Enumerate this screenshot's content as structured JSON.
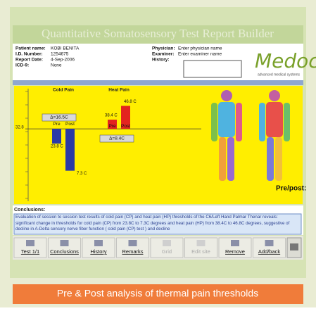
{
  "header": {
    "title": "Quantitative Somatosensory Test Report Builder"
  },
  "patient": [
    {
      "label": "Patient name:",
      "value": "KOBI BENITA"
    },
    {
      "label": "I.D. Number:",
      "value": "1254675"
    },
    {
      "label": "Report Date:",
      "value": "4-Sep-2006"
    },
    {
      "label": "ICD-9:",
      "value": "None"
    }
  ],
  "staff": [
    {
      "label": "Physician:",
      "value": "Enter physician name"
    },
    {
      "label": "Examiner:",
      "value": "Enter examiner name"
    },
    {
      "label": "History:"
    }
  ],
  "logo": {
    "name": "Medoc",
    "tagline": "advanced medical systems"
  },
  "chart": {
    "type": "bar",
    "baseline": 32.8,
    "ylim": [
      -13,
      59
    ],
    "groups": [
      {
        "name": "Cold Pain",
        "categories": [
          "Pre",
          "Post"
        ],
        "values": [
          23.8,
          7.3
        ],
        "value_labels": [
          "23.8 C",
          "7.3 C"
        ],
        "delta": "Δ=16.5C",
        "color": "#2b3aa6"
      },
      {
        "name": "Heat Pain",
        "categories": [
          "Pre",
          "Post"
        ],
        "values": [
          38.4,
          46.8
        ],
        "value_labels": [
          "38.4 C",
          "46.8 C"
        ],
        "delta": "Δ=8.4C",
        "color": "#e3241f"
      }
    ]
  },
  "body_map": {
    "label": "Pre/post:"
  },
  "conclusions": {
    "title": "Conclusions:",
    "text": "Evaluation of session to session test results of cold pain (CP) and heat pain (HP) thresholds of the C6/Left Hand Palmar Thenar reveals: significant change in thresholds for cold pain (CP) from 23.8C to 7.3C degrees and heat pain (HP) from 38.4C to 46.8C degrees, suggestive of decline in A-Delta sensory nerve fiber function ( cold pain (CP) test ) and decline"
  },
  "toolbar": [
    {
      "label": "Test 1/1",
      "enabled": true
    },
    {
      "label": "Conclusions",
      "enabled": true
    },
    {
      "label": "History",
      "enabled": true
    },
    {
      "label": "Remarks",
      "enabled": true
    },
    {
      "label": "Grid",
      "enabled": false
    },
    {
      "label": "Edit site",
      "enabled": false
    },
    {
      "label": "Remove",
      "enabled": true
    },
    {
      "label": "Add/back",
      "enabled": true
    }
  ],
  "caption": "Pre & Post analysis of thermal pain thresholds"
}
